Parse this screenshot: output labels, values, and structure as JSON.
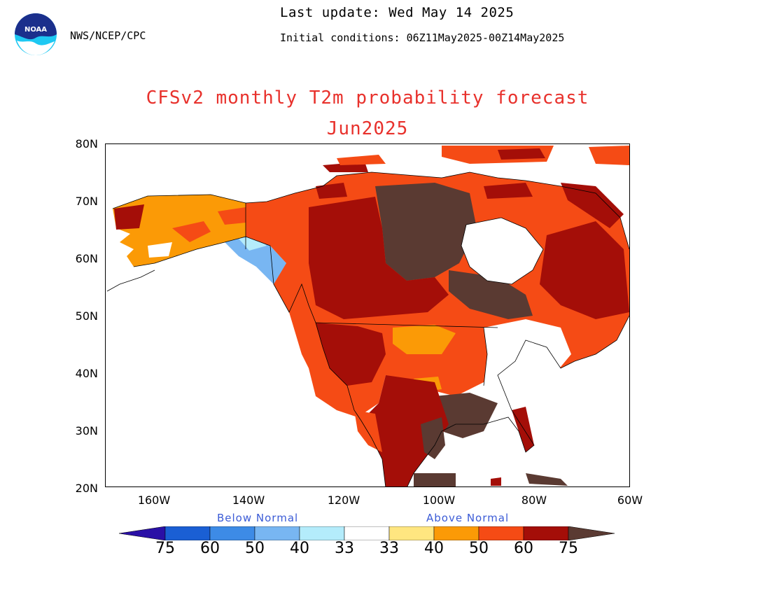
{
  "header": {
    "org": "NWS/NCEP/CPC",
    "last_update": "Last update: Wed May 14 2025",
    "initial_conditions": "Initial conditions: 06Z11May2025-00Z14May2025"
  },
  "title": "CFSv2 monthly T2m probability forecast",
  "subtitle": "Jun2025",
  "axes": {
    "lat_labels": [
      "80N",
      "70N",
      "60N",
      "50N",
      "40N",
      "30N",
      "20N"
    ],
    "lon_labels": [
      "160W",
      "140W",
      "120W",
      "100W",
      "80W",
      "60W"
    ]
  },
  "legend": {
    "below_label": "Below Normal",
    "above_label": "Above Normal",
    "below_values": [
      "75",
      "60",
      "50",
      "40",
      "33"
    ],
    "above_values": [
      "33",
      "40",
      "50",
      "60",
      "75"
    ],
    "colors": {
      "below_75": "#2a10a6",
      "below_60": "#1a5fd4",
      "below_50": "#3d8be6",
      "below_40": "#78b6f2",
      "below_33": "#b4ecfb",
      "normal": "#ffffff",
      "above_33": "#ffe680",
      "above_40": "#fb9a06",
      "above_50": "#f54b15",
      "above_60": "#a40e08",
      "above_75": "#5a3a32"
    }
  },
  "colors": {
    "title": "#e8312c",
    "legend_text": "#3b5bd6"
  }
}
